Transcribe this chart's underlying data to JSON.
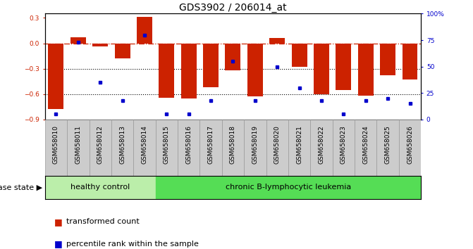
{
  "title": "GDS3902 / 206014_at",
  "samples": [
    "GSM658010",
    "GSM658011",
    "GSM658012",
    "GSM658013",
    "GSM658014",
    "GSM658015",
    "GSM658016",
    "GSM658017",
    "GSM658018",
    "GSM658019",
    "GSM658020",
    "GSM658021",
    "GSM658022",
    "GSM658023",
    "GSM658024",
    "GSM658025",
    "GSM658026"
  ],
  "bar_values": [
    -0.78,
    0.07,
    -0.04,
    -0.18,
    0.31,
    -0.64,
    -0.65,
    -0.52,
    -0.32,
    -0.63,
    0.06,
    -0.28,
    -0.6,
    -0.55,
    -0.62,
    -0.38,
    -0.43
  ],
  "dot_values": [
    5,
    73,
    35,
    18,
    80,
    5,
    5,
    18,
    55,
    18,
    50,
    30,
    18,
    5,
    18,
    20,
    15
  ],
  "ylim_left": [
    -0.9,
    0.35
  ],
  "ylim_right": [
    0,
    100
  ],
  "yticks_left": [
    -0.9,
    -0.6,
    -0.3,
    0.0,
    0.3
  ],
  "yticks_right": [
    0,
    25,
    50,
    75,
    100
  ],
  "ytick_labels_right": [
    "0",
    "25",
    "50",
    "75",
    "100%"
  ],
  "bar_color": "#cc2200",
  "dot_color": "#0000cc",
  "hline_y": 0.0,
  "hline_color": "#cc2200",
  "dotted_lines": [
    -0.3,
    -0.6
  ],
  "dotted_color": "#000000",
  "healthy_label": "healthy control",
  "leukemia_label": "chronic B-lymphocytic leukemia",
  "healthy_count": 5,
  "disease_state_label": "disease state",
  "legend_bar_label": "transformed count",
  "legend_dot_label": "percentile rank within the sample",
  "healthy_color": "#bbeeaa",
  "leukemia_color": "#55dd55",
  "bg_color": "#ffffff",
  "title_fontsize": 10,
  "tick_fontsize": 6.5,
  "label_fontsize": 8,
  "xtick_bg": "#cccccc"
}
